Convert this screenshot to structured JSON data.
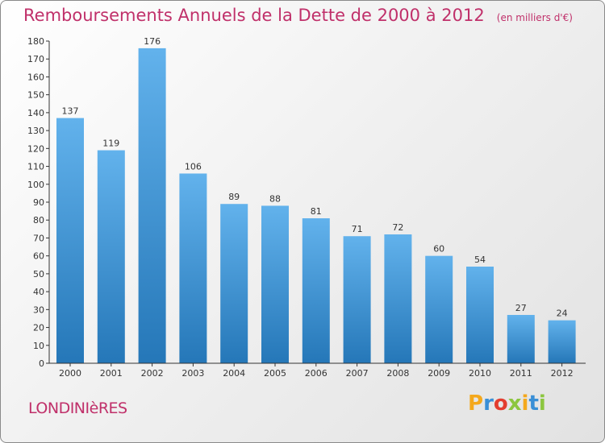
{
  "chart_data": {
    "type": "bar",
    "title": "Remboursements Annuels de la Dette de 2000 à 2012",
    "unit": "(en milliers d'€)",
    "categories": [
      "2000",
      "2001",
      "2002",
      "2003",
      "2004",
      "2005",
      "2006",
      "2007",
      "2008",
      "2009",
      "2010",
      "2011",
      "2012"
    ],
    "values": [
      137,
      119,
      176,
      106,
      89,
      88,
      81,
      71,
      72,
      60,
      54,
      27,
      24
    ],
    "ylim": [
      0,
      180
    ],
    "yticks": [
      0,
      10,
      20,
      30,
      40,
      50,
      60,
      70,
      80,
      90,
      100,
      110,
      120,
      130,
      140,
      150,
      160,
      170,
      180
    ],
    "grid": false,
    "colors": {
      "bar_top": "#62b2ec",
      "bar_bottom": "#2577b8",
      "text": "#c0306a"
    }
  },
  "commune": "LONDINIèRES",
  "logo": {
    "letters": [
      {
        "char": "P",
        "color": "#f4a81c"
      },
      {
        "char": "r",
        "color": "#3a8fd6"
      },
      {
        "char": "o",
        "color": "#e33d2f"
      },
      {
        "char": "x",
        "color": "#8cc63f"
      },
      {
        "char": "i",
        "color": "#f4a81c"
      },
      {
        "char": "t",
        "color": "#3a8fd6"
      },
      {
        "char": "i",
        "color": "#8cc63f"
      }
    ]
  }
}
